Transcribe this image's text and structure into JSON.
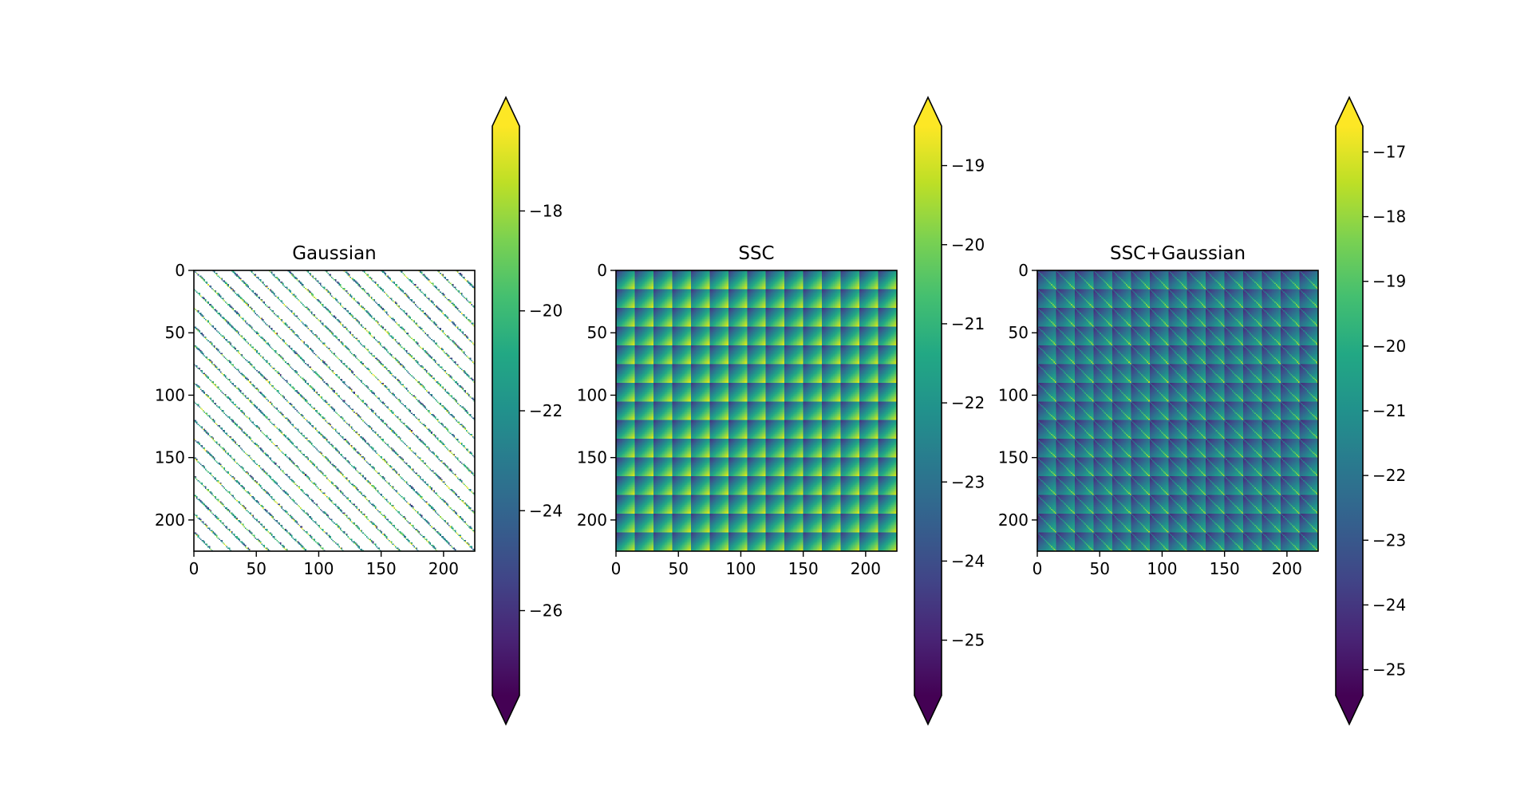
{
  "chart_data": [
    {
      "type": "heatmap",
      "title": "Gaussian",
      "xlabel": "",
      "ylabel": "",
      "matrix_size": 225,
      "xlim": [
        0,
        225
      ],
      "ylim": [
        225,
        0
      ],
      "x_ticks": [
        0,
        50,
        100,
        150,
        200
      ],
      "y_ticks": [
        0,
        50,
        100,
        150,
        200
      ],
      "x_tick_labels": [
        "0",
        "50",
        "100",
        "150",
        "200"
      ],
      "y_tick_labels": [
        "0",
        "50",
        "100",
        "150",
        "200"
      ],
      "pattern": "sparse-block-diagonals",
      "block_size": 15,
      "colormap": "viridis",
      "background": "#ffffff",
      "colorbar": {
        "extend": "both",
        "vmin": -27.7,
        "vmax": -16.3,
        "ticks": [
          -18,
          -20,
          -22,
          -24,
          -26
        ],
        "tick_labels": [
          "−18",
          "−20",
          "−22",
          "−24",
          "−26"
        ]
      }
    },
    {
      "type": "heatmap",
      "title": "SSC",
      "xlabel": "",
      "ylabel": "",
      "matrix_size": 225,
      "xlim": [
        0,
        225
      ],
      "ylim": [
        225,
        0
      ],
      "x_ticks": [
        0,
        50,
        100,
        150,
        200
      ],
      "y_ticks": [
        0,
        50,
        100,
        150,
        200
      ],
      "x_tick_labels": [
        "0",
        "50",
        "100",
        "150",
        "200"
      ],
      "y_tick_labels": [
        "0",
        "50",
        "100",
        "150",
        "200"
      ],
      "pattern": "block-gradient",
      "block_size": 15,
      "colormap": "viridis",
      "colorbar": {
        "extend": "both",
        "vmin": -25.7,
        "vmax": -18.5,
        "ticks": [
          -19,
          -20,
          -21,
          -22,
          -23,
          -24,
          -25
        ],
        "tick_labels": [
          "−19",
          "−20",
          "−21",
          "−22",
          "−23",
          "−24",
          "−25"
        ]
      }
    },
    {
      "type": "heatmap",
      "title": "SSC+Gaussian",
      "xlabel": "",
      "ylabel": "",
      "matrix_size": 225,
      "xlim": [
        0,
        225
      ],
      "ylim": [
        225,
        0
      ],
      "x_ticks": [
        0,
        50,
        100,
        150,
        200
      ],
      "y_ticks": [
        0,
        50,
        100,
        150,
        200
      ],
      "x_tick_labels": [
        "0",
        "50",
        "100",
        "150",
        "200"
      ],
      "y_tick_labels": [
        "0",
        "50",
        "100",
        "150",
        "200"
      ],
      "pattern": "block-gradient-with-diagonals",
      "block_size": 15,
      "colormap": "viridis",
      "colorbar": {
        "extend": "both",
        "vmin": -25.4,
        "vmax": -16.6,
        "ticks": [
          -17,
          -18,
          -19,
          -20,
          -21,
          -22,
          -23,
          -24,
          -25
        ],
        "tick_labels": [
          "−17",
          "−18",
          "−19",
          "−20",
          "−21",
          "−22",
          "−23",
          "−24",
          "−25"
        ]
      }
    }
  ]
}
